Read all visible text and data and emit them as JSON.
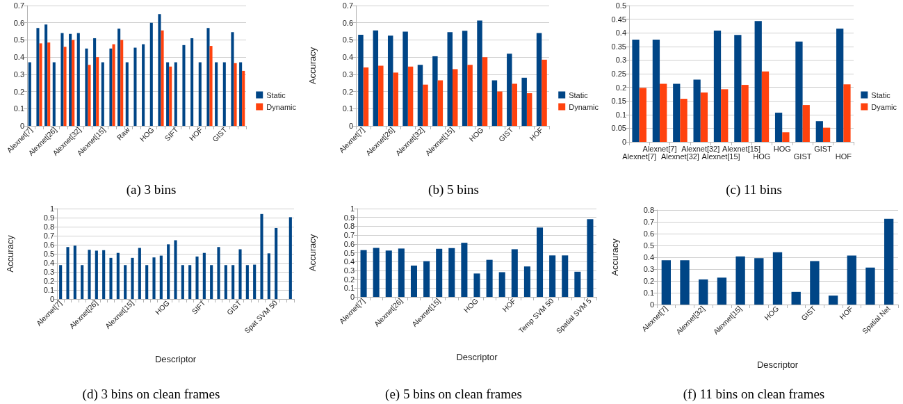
{
  "chart_data": [
    {
      "type": "bar",
      "title": "(a) 3 bins",
      "categories": [
        "Alexnet[7]",
        null,
        null,
        "Alexnet[26]",
        null,
        null,
        "Alexnet[32]",
        null,
        null,
        "Alexnet[15]",
        null,
        null,
        "Raw",
        null,
        null,
        "HOG",
        null,
        null,
        "SIFT",
        null,
        null,
        "HOF",
        null,
        null,
        "GIST",
        null,
        null
      ],
      "series": [
        {
          "name": "Static",
          "color": "#004586",
          "values": [
            0.37,
            0.57,
            0.59,
            0.37,
            0.54,
            0.535,
            0.54,
            0.45,
            0.51,
            0.37,
            0.45,
            0.565,
            0.37,
            0.455,
            0.475,
            0.6,
            0.65,
            0.37,
            0.37,
            0.47,
            0.51,
            0.37,
            0.57,
            0.37,
            0.37,
            0.545,
            0.37
          ]
        },
        {
          "name": "Dynamic",
          "color": "#ff420e",
          "values": [
            null,
            0.48,
            0.485,
            null,
            0.46,
            0.5,
            null,
            0.355,
            0.4,
            null,
            0.475,
            0.5,
            null,
            null,
            null,
            null,
            0.555,
            0.345,
            null,
            null,
            null,
            null,
            0.465,
            null,
            null,
            0.365,
            0.32
          ]
        }
      ],
      "ylim": [
        0,
        0.7
      ],
      "yticks": [
        0,
        0.1,
        0.2,
        0.3,
        0.4,
        0.5,
        0.6,
        0.7
      ],
      "grid": "y",
      "legend": "right"
    },
    {
      "type": "bar",
      "title": "(b) 5 bins",
      "ylabel": "Accuracy",
      "categories": [
        "Alexnet[7]",
        null,
        "Alexnet[26]",
        null,
        "Alexnet[32]",
        null,
        "Alexnet[15]",
        null,
        "HOG",
        null,
        "GIST",
        null,
        "HOF"
      ],
      "series": [
        {
          "name": "Static",
          "color": "#004586",
          "values": [
            0.53,
            0.555,
            0.525,
            0.548,
            0.355,
            0.405,
            0.545,
            0.553,
            0.613,
            0.265,
            0.42,
            0.28,
            0.54
          ]
        },
        {
          "name": "Dynamic",
          "color": "#ff420e",
          "values": [
            0.34,
            0.35,
            0.31,
            0.345,
            0.24,
            0.265,
            0.33,
            0.355,
            0.4,
            0.2,
            0.245,
            0.19,
            0.385
          ]
        }
      ],
      "ylim": [
        0,
        0.7
      ],
      "yticks": [
        0,
        0.1,
        0.2,
        0.3,
        0.4,
        0.5,
        0.6,
        0.7
      ],
      "grid": "y",
      "legend": "right"
    },
    {
      "type": "bar",
      "title": "(c) 11 bins",
      "categories": [
        "Alexnet[7]",
        "Alexnet[7]",
        "Alexnet[32]",
        "Alexnet[32]",
        "Alexnet[15]",
        "Alexnet[15]",
        "HOG",
        "HOG",
        "GIST",
        "GIST",
        "HOF"
      ],
      "series": [
        {
          "name": "Static",
          "color": "#004586",
          "values": [
            0.375,
            0.375,
            0.213,
            0.228,
            0.408,
            0.392,
            0.443,
            0.107,
            0.368,
            0.076,
            0.415
          ]
        },
        {
          "name": "Dyamic",
          "color": "#ff420e",
          "values": [
            0.198,
            0.213,
            0.158,
            0.181,
            0.193,
            0.209,
            0.258,
            0.035,
            0.135,
            0.052,
            0.211
          ]
        }
      ],
      "ylim": [
        0,
        0.5
      ],
      "yticks": [
        0,
        0.05,
        0.1,
        0.15,
        0.2,
        0.25,
        0.3,
        0.35,
        0.4,
        0.45,
        0.5
      ],
      "grid": "y",
      "legend": "right"
    },
    {
      "type": "bar",
      "title": "(d) 3 bins on clean frames",
      "xlabel": "Descriptor",
      "ylabel": "Accuracy",
      "categories": [
        "Alexnet[7]",
        null,
        null,
        null,
        null,
        "Alexnet[26]",
        null,
        null,
        null,
        null,
        "Alexnet[15]",
        null,
        null,
        null,
        null,
        "HOG",
        null,
        null,
        null,
        null,
        "SIFT",
        null,
        null,
        null,
        null,
        "GIST",
        null,
        null,
        null,
        null,
        "Spat SVM 50",
        null,
        null
      ],
      "series": [
        {
          "color": "#004586",
          "values": [
            0.375,
            0.575,
            0.59,
            0.375,
            0.545,
            0.535,
            0.54,
            0.455,
            0.51,
            0.375,
            0.455,
            0.565,
            0.375,
            0.46,
            0.48,
            0.605,
            0.65,
            0.375,
            0.375,
            0.47,
            0.51,
            0.375,
            0.575,
            0.375,
            0.375,
            0.55,
            0.375,
            0.38,
            0.94,
            0.505,
            0.785,
            null,
            0.905
          ]
        }
      ],
      "ylim": [
        0,
        1
      ],
      "yticks": [
        0,
        0.1,
        0.2,
        0.3,
        0.4,
        0.5,
        0.6,
        0.7,
        0.8,
        0.9,
        1
      ],
      "grid": "y"
    },
    {
      "type": "bar",
      "title": "(e) 5 bins on clean frames",
      "xlabel": "Descriptor",
      "ylabel": "Accuracy",
      "categories": [
        "Alexnet[7]",
        null,
        null,
        "Alexnet[26]",
        null,
        null,
        "Alexnet[15]",
        null,
        null,
        "HOG",
        null,
        null,
        "HOF",
        null,
        null,
        "Temp SVM 50",
        null,
        null,
        "Spatial SVM 5"
      ],
      "series": [
        {
          "color": "#004586",
          "values": [
            0.53,
            0.555,
            0.525,
            0.548,
            0.355,
            0.405,
            0.545,
            0.553,
            0.613,
            0.265,
            0.42,
            0.28,
            0.54,
            0.345,
            0.785,
            0.47,
            0.47,
            0.285,
            0.88
          ]
        }
      ],
      "ylim": [
        0,
        1
      ],
      "yticks": [
        0,
        0.1,
        0.2,
        0.3,
        0.4,
        0.5,
        0.6,
        0.7,
        0.8,
        0.9,
        1
      ],
      "grid": "y"
    },
    {
      "type": "bar",
      "title": "(f) 11 bins on clean frames",
      "xlabel": "Descriptor",
      "ylabel": "Accuracy",
      "categories": [
        "Alexnet[7]",
        null,
        "Alexnet[32]",
        null,
        "Alexnet[15]",
        null,
        "HOG",
        null,
        "GIST",
        null,
        "HOF",
        null,
        "Spatial Net"
      ],
      "series": [
        {
          "color": "#004586",
          "values": [
            0.375,
            0.375,
            0.213,
            0.228,
            0.408,
            0.392,
            0.443,
            0.107,
            0.368,
            0.076,
            0.415,
            0.313,
            0.725
          ]
        }
      ],
      "ylim": [
        0,
        0.8
      ],
      "yticks": [
        0,
        0.1,
        0.2,
        0.3,
        0.4,
        0.5,
        0.6,
        0.7,
        0.8
      ],
      "grid": "y"
    }
  ]
}
